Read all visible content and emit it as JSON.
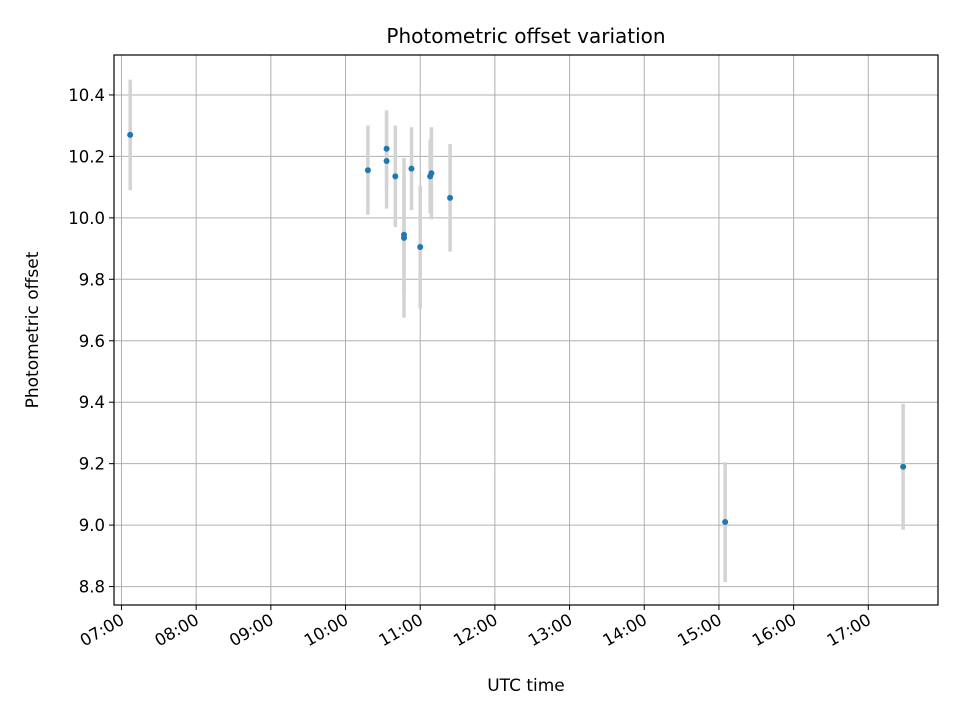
{
  "chart_data": {
    "type": "scatter",
    "title": "Photometric offset variation",
    "xlabel": "UTC time",
    "ylabel": "Photometric offset",
    "x_tick_labels": [
      "07:00",
      "08:00",
      "09:00",
      "10:00",
      "11:00",
      "12:00",
      "13:00",
      "14:00",
      "15:00",
      "16:00",
      "17:00"
    ],
    "y_tick_labels": [
      "8.8",
      "9.0",
      "9.2",
      "9.4",
      "9.6",
      "9.8",
      "10.0",
      "10.2",
      "10.4"
    ],
    "ylim": [
      8.74,
      10.53
    ],
    "xlim": [
      "06:54",
      "17:56"
    ],
    "grid": true,
    "series": [
      {
        "marker_color": "#1f77b4",
        "errorbar_color": "#d3d3d3",
        "x": [
          "07:07",
          "10:18",
          "10:33",
          "10:33",
          "10:40",
          "10:47",
          "10:47",
          "10:53",
          "11:00",
          "11:08",
          "11:09",
          "11:24",
          "15:05",
          "17:28"
        ],
        "y": [
          10.27,
          10.155,
          10.185,
          10.225,
          10.135,
          9.945,
          9.935,
          10.16,
          9.905,
          10.135,
          10.145,
          10.065,
          9.01,
          9.19
        ],
        "yerr": [
          0.18,
          0.145,
          0.155,
          0.125,
          0.165,
          0.19,
          0.26,
          0.135,
          0.2,
          0.12,
          0.15,
          0.175,
          0.195,
          0.205
        ]
      }
    ]
  }
}
